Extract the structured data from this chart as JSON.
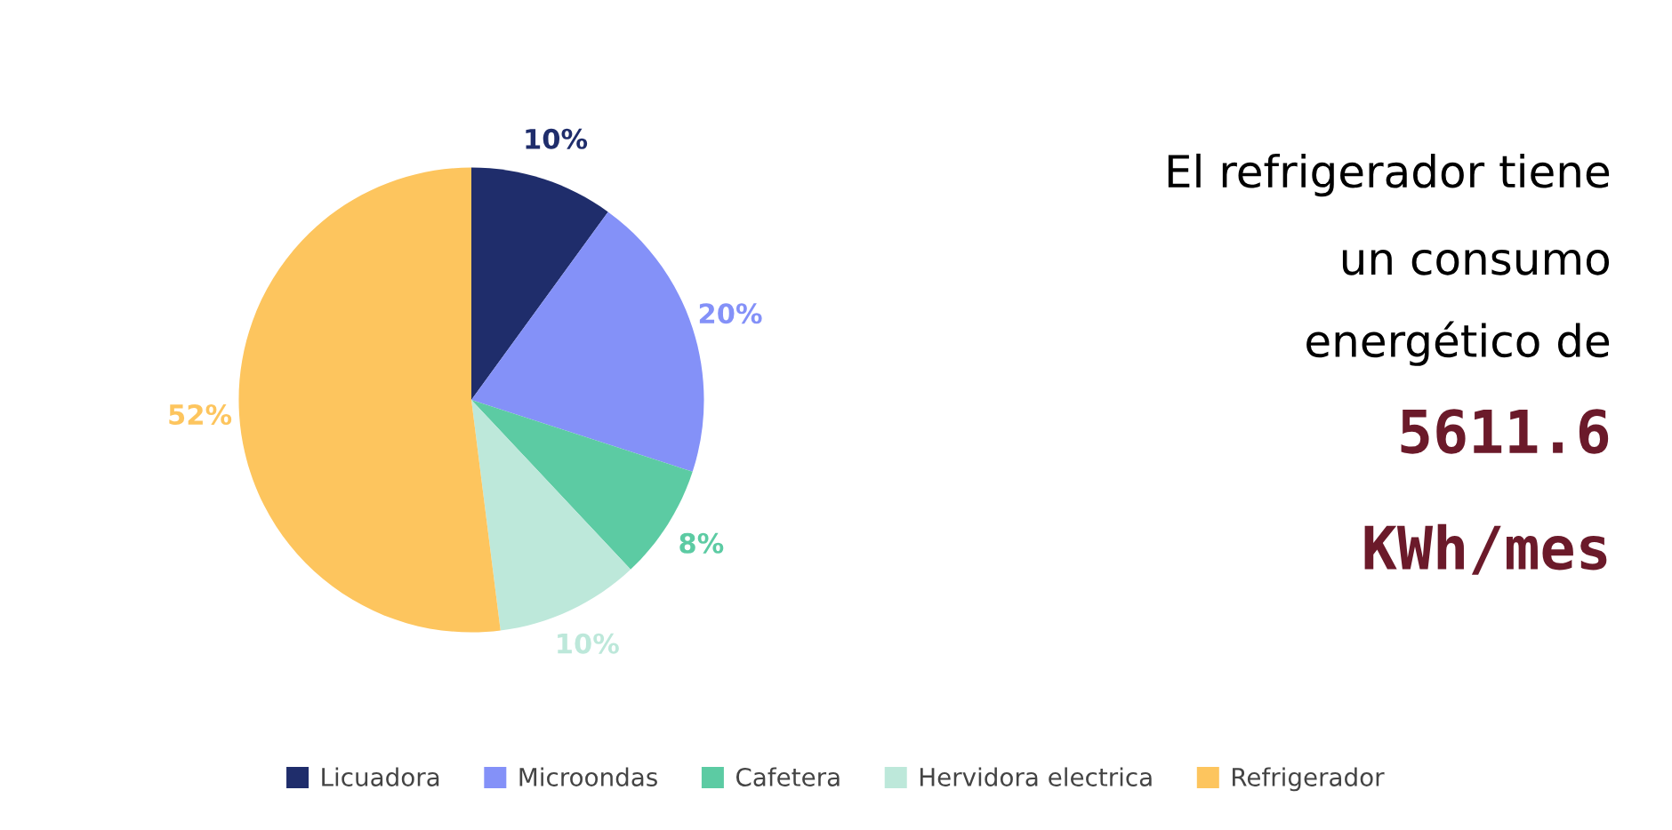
{
  "chart_data": [
    {
      "type": "pie",
      "categories": [
        "Licuadora",
        "Microondas",
        "Cafetera",
        "Hervidora electrica",
        "Refrigerador"
      ],
      "values": [
        10,
        20,
        8,
        10,
        52
      ],
      "colors": [
        "#1f2d6b",
        "#8491f8",
        "#5ccba3",
        "#bde8da",
        "#fdc55e"
      ],
      "value_labels": [
        "10%",
        "20%",
        "8%",
        "10%",
        "52%"
      ],
      "legend": "bottom"
    },
    {
      "type": "other",
      "annotations": [
        "El refrigerador tiene",
        "un consumo",
        "energético de",
        "5611.6",
        "KWh/mes"
      ]
    }
  ]
}
